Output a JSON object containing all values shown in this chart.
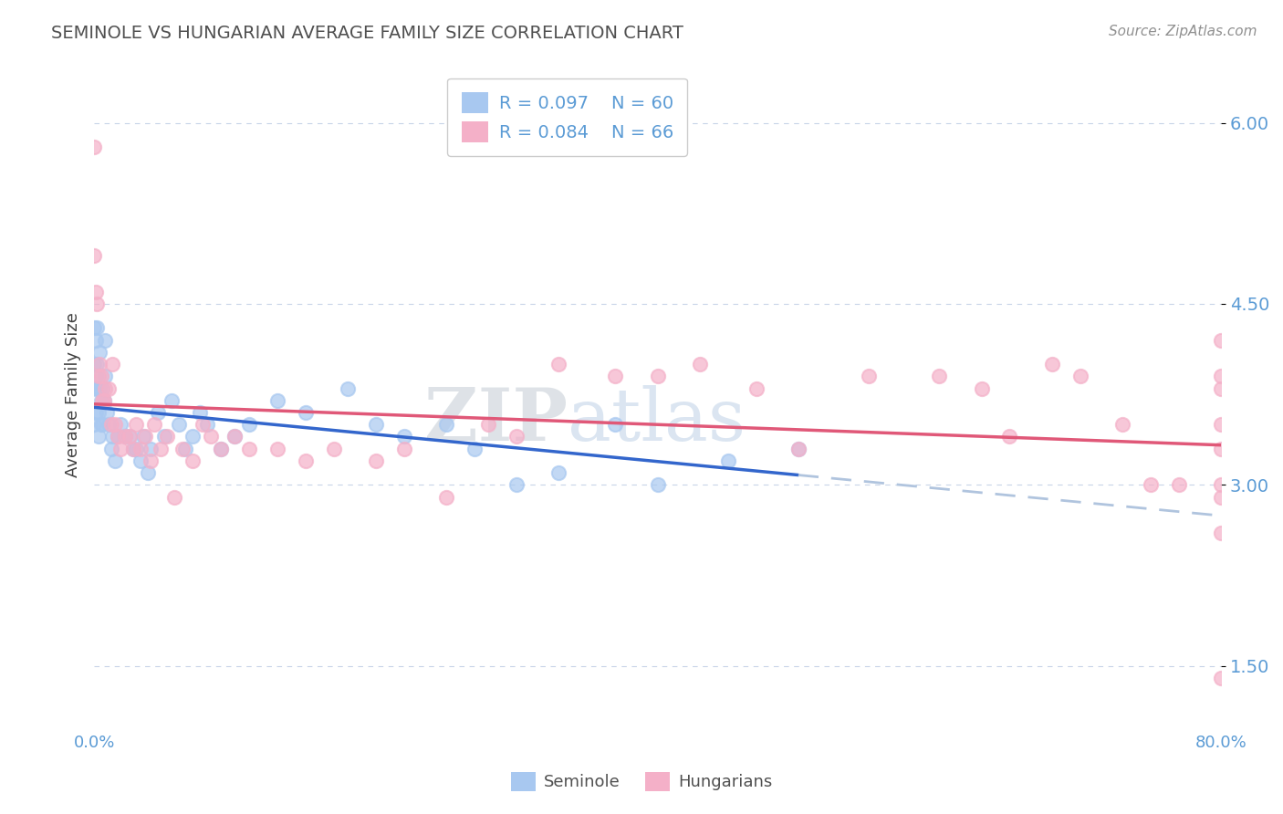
{
  "title": "SEMINOLE VS HUNGARIAN AVERAGE FAMILY SIZE CORRELATION CHART",
  "source": "Source: ZipAtlas.com",
  "ylabel": "Average Family Size",
  "xlim": [
    0.0,
    0.8
  ],
  "ylim": [
    1.0,
    6.5
  ],
  "yticks": [
    1.5,
    3.0,
    4.5,
    6.0
  ],
  "xticklabels": [
    "0.0%",
    "80.0%"
  ],
  "legend_r1": "R = 0.097",
  "legend_n1": "N = 60",
  "legend_r2": "R = 0.084",
  "legend_n2": "N = 66",
  "blue_color": "#a8c8f0",
  "pink_color": "#f4b0c8",
  "blue_line_color": "#3366cc",
  "pink_line_color": "#e05878",
  "dashed_line_color": "#b0c4de",
  "title_color": "#505050",
  "tick_color": "#5b9bd5",
  "grid_color": "#c8d4e8",
  "watermark": "ZIPatlas",
  "seminole_x": [
    0.0,
    0.0,
    0.0,
    0.0,
    0.001,
    0.001,
    0.001,
    0.002,
    0.002,
    0.003,
    0.003,
    0.003,
    0.004,
    0.004,
    0.005,
    0.005,
    0.006,
    0.006,
    0.007,
    0.008,
    0.008,
    0.009,
    0.01,
    0.012,
    0.013,
    0.015,
    0.017,
    0.019,
    0.022,
    0.025,
    0.028,
    0.03,
    0.033,
    0.035,
    0.038,
    0.04,
    0.045,
    0.05,
    0.055,
    0.06,
    0.065,
    0.07,
    0.075,
    0.08,
    0.09,
    0.1,
    0.11,
    0.13,
    0.15,
    0.18,
    0.2,
    0.22,
    0.25,
    0.27,
    0.3,
    0.33,
    0.37,
    0.4,
    0.45,
    0.5
  ],
  "seminole_y": [
    4.3,
    4.0,
    3.8,
    3.5,
    4.2,
    3.9,
    3.6,
    4.3,
    4.0,
    3.8,
    3.6,
    3.4,
    4.1,
    3.8,
    3.7,
    3.5,
    3.8,
    3.5,
    3.7,
    4.2,
    3.9,
    3.6,
    3.5,
    3.3,
    3.4,
    3.2,
    3.4,
    3.5,
    3.4,
    3.4,
    3.3,
    3.3,
    3.2,
    3.4,
    3.1,
    3.3,
    3.6,
    3.4,
    3.7,
    3.5,
    3.3,
    3.4,
    3.6,
    3.5,
    3.3,
    3.4,
    3.5,
    3.7,
    3.6,
    3.8,
    3.5,
    3.4,
    3.5,
    3.3,
    3.0,
    3.1,
    3.5,
    3.0,
    3.2,
    3.3
  ],
  "hungarian_x": [
    0.0,
    0.0,
    0.001,
    0.002,
    0.003,
    0.004,
    0.005,
    0.006,
    0.007,
    0.008,
    0.01,
    0.012,
    0.013,
    0.015,
    0.017,
    0.019,
    0.022,
    0.025,
    0.028,
    0.03,
    0.033,
    0.036,
    0.04,
    0.043,
    0.047,
    0.052,
    0.057,
    0.063,
    0.07,
    0.077,
    0.083,
    0.09,
    0.1,
    0.11,
    0.13,
    0.15,
    0.17,
    0.2,
    0.22,
    0.25,
    0.28,
    0.3,
    0.33,
    0.37,
    0.4,
    0.43,
    0.47,
    0.5,
    0.55,
    0.6,
    0.63,
    0.65,
    0.68,
    0.7,
    0.73,
    0.75,
    0.77,
    0.8,
    0.8,
    0.8,
    0.8,
    0.8,
    0.8,
    0.8,
    0.8,
    0.8
  ],
  "hungarian_y": [
    5.8,
    4.9,
    4.6,
    4.5,
    3.9,
    4.0,
    3.9,
    3.7,
    3.7,
    3.8,
    3.8,
    3.5,
    4.0,
    3.5,
    3.4,
    3.3,
    3.4,
    3.4,
    3.3,
    3.5,
    3.3,
    3.4,
    3.2,
    3.5,
    3.3,
    3.4,
    2.9,
    3.3,
    3.2,
    3.5,
    3.4,
    3.3,
    3.4,
    3.3,
    3.3,
    3.2,
    3.3,
    3.2,
    3.3,
    2.9,
    3.5,
    3.4,
    4.0,
    3.9,
    3.9,
    4.0,
    3.8,
    3.3,
    3.9,
    3.9,
    3.8,
    3.4,
    4.0,
    3.9,
    3.5,
    3.0,
    3.0,
    3.8,
    4.2,
    3.3,
    2.6,
    3.9,
    3.5,
    2.9,
    3.0,
    1.4
  ]
}
